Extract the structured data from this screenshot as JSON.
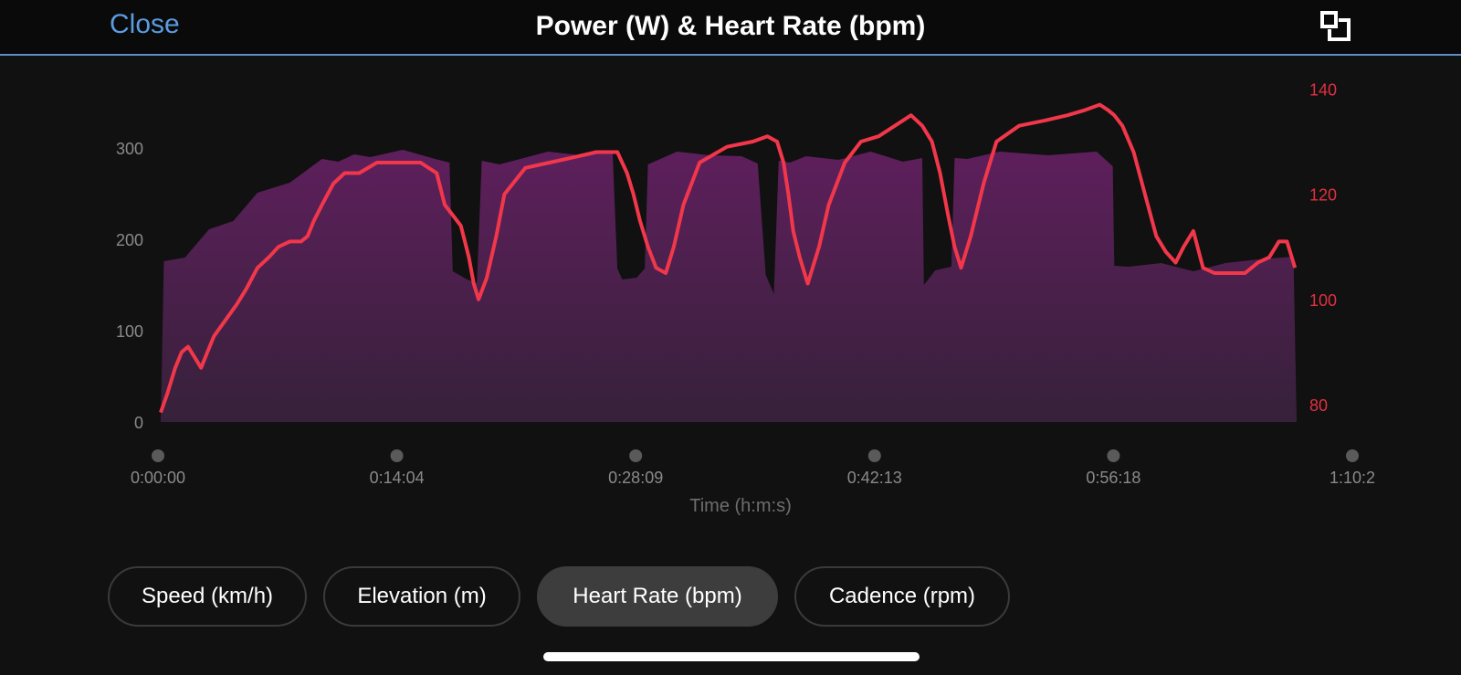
{
  "header": {
    "close_label": "Close",
    "title": "Power (W) & Heart Rate (bpm)",
    "fullscreen_icon": "fullscreen-icon"
  },
  "chart_data": {
    "type": "area",
    "xlabel": "Time (h:m:s)",
    "x_ticks": [
      "0:00:00",
      "0:14:04",
      "0:28:09",
      "0:42:13",
      "0:56:18",
      "1:10:2"
    ],
    "x_range_min": [
      0,
      70.4
    ],
    "y_left": {
      "ticks": [
        0,
        100,
        200,
        300
      ],
      "range": [
        0,
        390
      ],
      "color": "#8a8a8a"
    },
    "y_right": {
      "ticks": [
        80,
        100,
        120,
        140
      ],
      "range": [
        76.7,
        144.4
      ],
      "color": "#e23040"
    },
    "series": [
      {
        "kind": "area",
        "axis": "left",
        "color": "#5a2358",
        "x": [
          0,
          0.2,
          1.5,
          3,
          4.5,
          6,
          8,
          10,
          11,
          12,
          13,
          15,
          17,
          17.9,
          18.1,
          19,
          19.6,
          19.9,
          21,
          24,
          26,
          28,
          28.3,
          28.6,
          29.5,
          30,
          30.2,
          32,
          34,
          36,
          37,
          37.5,
          38,
          38.3,
          39,
          40,
          42,
          44,
          46,
          47.2,
          47.3,
          48,
          49,
          49.2,
          50,
          52,
          55,
          58,
          59,
          59.1,
          60,
          62,
          64,
          66,
          68,
          70.2,
          70.4
        ],
        "values": [
          0,
          170,
          180,
          205,
          220,
          245,
          262,
          282,
          285,
          287,
          290,
          292,
          288,
          278,
          165,
          150,
          152,
          280,
          282,
          290,
          292,
          290,
          168,
          150,
          158,
          162,
          282,
          290,
          292,
          285,
          283,
          155,
          140,
          280,
          284,
          285,
          287,
          290,
          285,
          283,
          150,
          160,
          170,
          283,
          288,
          290,
          292,
          290,
          280,
          165,
          170,
          168,
          165,
          168,
          178,
          175,
          0
        ]
      },
      {
        "kind": "line",
        "axis": "right",
        "color": "#f2374a",
        "x": [
          0,
          0.4,
          0.9,
          1.3,
          1.7,
          2.1,
          2.5,
          2.9,
          3.3,
          4,
          4.7,
          5.3,
          6,
          6.7,
          7.3,
          8,
          8.7,
          9.1,
          9.5,
          10,
          10.7,
          11.4,
          12.3,
          13.4,
          14.5,
          15.3,
          16.1,
          17.1,
          17.6,
          18.6,
          19.1,
          19.4,
          19.7,
          20.2,
          20.8,
          21.3,
          22.6,
          24.1,
          25.6,
          27,
          28.3,
          28.9,
          29.3,
          29.7,
          30.2,
          30.7,
          31.3,
          31.8,
          32.4,
          33.4,
          35.1,
          36.7,
          37.6,
          38.2,
          38.6,
          38.9,
          39.2,
          39.6,
          40.1,
          40.8,
          41.4,
          42.4,
          43.4,
          44.5,
          45.5,
          46.5,
          47.2,
          47.8,
          48.3,
          48.8,
          49.2,
          49.6,
          50.2,
          51,
          51.8,
          53.2,
          54.8,
          56.2,
          57.3,
          58.2,
          58.7,
          59.1,
          59.6,
          60.3,
          61,
          61.7,
          62.3,
          62.9,
          63.4,
          64,
          64.6,
          65.3,
          66.3,
          67.2,
          68,
          68.7,
          69.3,
          69.8,
          70.1,
          70.3
        ],
        "values": [
          78.5,
          82,
          87,
          90,
          91,
          89,
          87,
          90,
          93,
          96,
          99,
          102,
          106,
          108,
          110,
          111,
          111,
          112,
          115,
          118,
          122,
          124,
          124,
          126,
          126,
          126,
          126,
          124,
          118,
          114,
          108,
          103,
          100,
          104,
          112,
          120,
          125,
          126,
          127,
          128,
          128,
          124,
          120,
          115,
          110,
          106,
          105,
          110,
          118,
          126,
          129,
          130,
          131,
          130,
          126,
          120,
          113,
          108,
          103,
          110,
          118,
          126,
          130,
          131,
          133,
          135,
          133,
          130,
          124,
          116,
          110,
          106,
          112,
          122,
          130,
          133,
          134,
          135,
          136,
          137,
          136,
          135,
          133,
          128,
          120,
          112,
          109,
          107,
          110,
          113,
          106,
          105,
          105,
          105,
          107,
          108,
          111,
          111,
          108,
          106
        ]
      }
    ]
  },
  "tabs": [
    {
      "label": "Speed (km/h)",
      "active": false
    },
    {
      "label": "Elevation (m)",
      "active": false
    },
    {
      "label": "Heart Rate (bpm)",
      "active": true
    },
    {
      "label": "Cadence (rpm)",
      "active": false
    }
  ]
}
